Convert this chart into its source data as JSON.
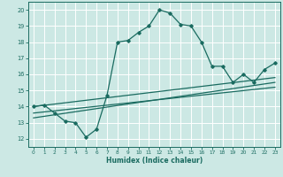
{
  "xlabel": "Humidex (Indice chaleur)",
  "bg_color": "#cce8e4",
  "grid_color": "#ffffff",
  "line_color": "#1a6b60",
  "xlim": [
    -0.5,
    23.5
  ],
  "ylim": [
    11.5,
    20.5
  ],
  "xticks": [
    0,
    1,
    2,
    3,
    4,
    5,
    6,
    7,
    8,
    9,
    10,
    11,
    12,
    13,
    14,
    15,
    16,
    17,
    18,
    19,
    20,
    21,
    22,
    23
  ],
  "yticks": [
    12,
    13,
    14,
    15,
    16,
    17,
    18,
    19,
    20
  ],
  "line1_x": [
    0,
    1,
    2,
    3,
    4,
    5,
    6,
    7,
    8,
    9,
    10,
    11,
    12,
    13,
    14,
    15,
    16,
    17,
    18,
    19,
    20,
    21,
    22,
    23
  ],
  "line1_y": [
    14.0,
    14.1,
    13.6,
    13.1,
    13.0,
    12.1,
    12.6,
    14.7,
    18.0,
    18.1,
    18.6,
    19.0,
    20.0,
    19.8,
    19.1,
    19.0,
    18.0,
    16.5,
    16.5,
    15.5,
    16.0,
    15.5,
    16.3,
    16.7
  ],
  "line2_x": [
    0,
    23
  ],
  "line2_y": [
    14.0,
    15.8
  ],
  "line3_x": [
    0,
    23
  ],
  "line3_y": [
    13.3,
    15.5
  ],
  "line4_x": [
    0,
    23
  ],
  "line4_y": [
    13.6,
    15.2
  ]
}
